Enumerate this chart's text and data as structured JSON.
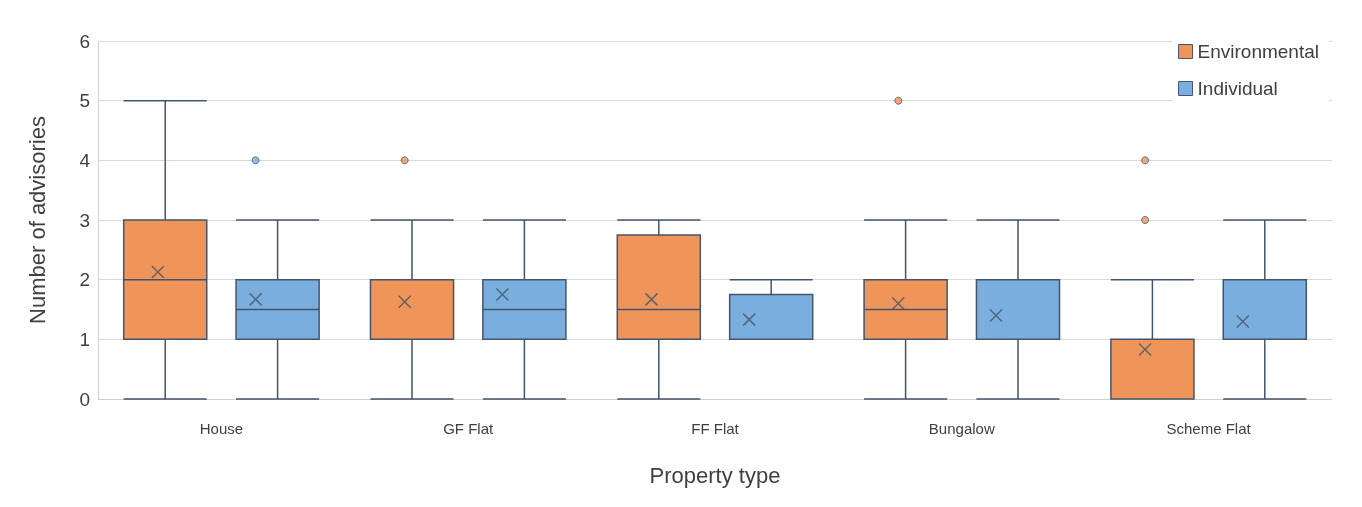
{
  "chart_data": {
    "type": "box",
    "xlabel": "Property type",
    "ylabel": "Number of advisories",
    "categories": [
      "House",
      "GF Flat",
      "FF Flat",
      "Bungalow",
      "Scheme Flat"
    ],
    "ylim": [
      0,
      6
    ],
    "yticks": [
      0,
      1,
      2,
      3,
      4,
      5,
      6
    ],
    "grid": "y",
    "legend": "top right",
    "marker": "cross",
    "series": [
      {
        "name": "Environmental",
        "color": "#f0955a",
        "boxes": [
          {
            "low": 0,
            "q1": 1,
            "median": 2,
            "q3": 3,
            "high": 5,
            "mean": 2.13
          },
          {
            "low": 0,
            "q1": 1,
            "median": 2,
            "q3": 2,
            "high": 3,
            "mean": 1.63,
            "outliers": [
              4
            ]
          },
          {
            "low": 0,
            "q1": 1,
            "median": 1.5,
            "q3": 2.75,
            "high": 3,
            "mean": 1.67
          },
          {
            "low": 0,
            "q1": 1,
            "median": 1.5,
            "q3": 2,
            "high": 3,
            "mean": 1.6,
            "outliers": [
              5
            ]
          },
          {
            "low": 0,
            "q1": 0,
            "median": 1,
            "q3": 1,
            "high": 2,
            "mean": 0.83,
            "outliers": [
              3,
              4
            ]
          }
        ]
      },
      {
        "name": "Individual",
        "color": "#7aaedf",
        "boxes": [
          {
            "low": 0,
            "q1": 1,
            "median": 1.5,
            "q3": 2,
            "high": 3,
            "mean": 1.67,
            "outliers": [
              4
            ]
          },
          {
            "low": 0,
            "q1": 1,
            "median": 1.5,
            "q3": 2,
            "high": 3,
            "mean": 1.75
          },
          {
            "low": 1,
            "q1": 1,
            "median": 1,
            "q3": 1.75,
            "high": 2,
            "mean": 1.33
          },
          {
            "low": 0,
            "q1": 1,
            "median": 1,
            "q3": 2,
            "high": 3,
            "mean": 1.4
          },
          {
            "low": 0,
            "q1": 1,
            "median": 1,
            "q3": 2,
            "high": 3,
            "mean": 1.3
          }
        ]
      }
    ]
  }
}
